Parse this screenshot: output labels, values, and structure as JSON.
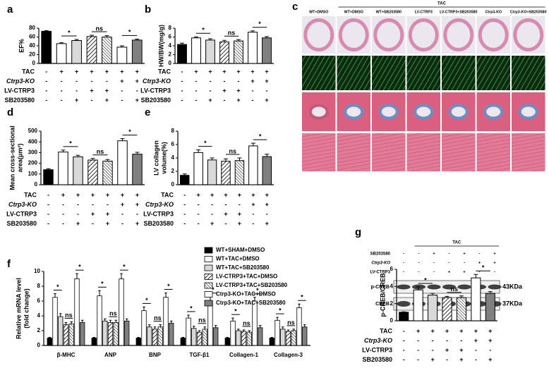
{
  "histology": {
    "panel": "c",
    "header": "TAC",
    "columns": [
      "WT+DMSO",
      "WT+DMSO",
      "WT+SB203580",
      "LV-CTRP3",
      "LV-CTRP3+SB203580",
      "Ctrp3-KO",
      "Ctrp3-KO+SB203580"
    ]
  },
  "blot": {
    "header": "TAC",
    "conditions": [
      {
        "label": "SB203580",
        "signs": [
          "-",
          "-",
          "+",
          "-",
          "+",
          "-",
          "+"
        ]
      },
      {
        "label": "Ctrp3-KO",
        "signs": [
          "-",
          "-",
          "-",
          "-",
          "-",
          "+",
          "+"
        ]
      },
      {
        "label": "LV-CTRP3",
        "signs": [
          "-",
          "-",
          "-",
          "+",
          "+",
          "-",
          "-"
        ]
      }
    ],
    "bands": [
      {
        "label": "p-CREB",
        "size": "43KDa"
      },
      {
        "label": "CREB",
        "size": "37KDa"
      }
    ]
  },
  "chart_data": [
    {
      "type": "bar",
      "panel": "a",
      "ylabel": "EF%",
      "values": [
        73,
        45,
        52,
        61,
        60,
        37,
        53
      ],
      "errors": [
        1.5,
        2,
        2.5,
        3,
        3,
        3,
        2.5
      ],
      "fills": [
        "#000000",
        "#ffffff",
        "#d9d9d9",
        "diagonal",
        "diagonal-dense",
        "#ffffff",
        "#808080"
      ],
      "ylim": [
        0,
        80
      ],
      "yticks": [
        0,
        20,
        40,
        60,
        80
      ],
      "significance": [
        {
          "label": "*",
          "bars": [
            1,
            2
          ]
        },
        {
          "label": "ns",
          "bars": [
            3,
            4
          ]
        },
        {
          "label": "*",
          "bars": [
            5,
            6
          ]
        }
      ],
      "conditions": [
        {
          "label": "TAC",
          "signs": [
            "-",
            "+",
            "+",
            "+",
            "+",
            "+",
            "+"
          ]
        },
        {
          "label": "Ctrp3-KO",
          "signs": [
            "-",
            "-",
            "-",
            "-",
            "-",
            "+",
            "+"
          ]
        },
        {
          "label": "LV-CTRP3",
          "signs": [
            "-",
            "-",
            "-",
            "+",
            "+",
            "-",
            "-"
          ]
        },
        {
          "label": "SB203580",
          "signs": [
            "-",
            "-",
            "+",
            "-",
            "+",
            "-",
            "+"
          ]
        }
      ]
    },
    {
      "type": "bar",
      "panel": "b",
      "ylabel": "HW/BW(mg/g)",
      "values": [
        4.3,
        5.8,
        5.3,
        4.9,
        5.1,
        7.1,
        5.8
      ],
      "errors": [
        0.3,
        0.25,
        0.3,
        0.35,
        0.3,
        0.3,
        0.3
      ],
      "fills": [
        "#000000",
        "#ffffff",
        "#d9d9d9",
        "diagonal",
        "diagonal-dense",
        "#ffffff",
        "#808080"
      ],
      "ylim": [
        0,
        8
      ],
      "yticks": [
        0,
        2,
        4,
        6,
        8
      ],
      "significance": [
        {
          "label": "*",
          "bars": [
            1,
            2
          ]
        },
        {
          "label": "ns",
          "bars": [
            3,
            4
          ]
        },
        {
          "label": "*",
          "bars": [
            5,
            6
          ]
        }
      ],
      "conditions": [
        {
          "label": "TAC",
          "signs": [
            "-",
            "+",
            "+",
            "+",
            "+",
            "+",
            "+"
          ]
        },
        {
          "label": "Ctrp3-KO",
          "signs": [
            "-",
            "-",
            "-",
            "-",
            "-",
            "+",
            "+"
          ]
        },
        {
          "label": "LV-CTRP3",
          "signs": [
            "-",
            "-",
            "-",
            "+",
            "+",
            "-",
            "-"
          ]
        },
        {
          "label": "SB203580",
          "signs": [
            "-",
            "-",
            "+",
            "-",
            "+",
            "-",
            "+"
          ]
        }
      ]
    },
    {
      "type": "bar",
      "panel": "d",
      "ylabel": [
        "Mean cross-sectional",
        "area(μm²)"
      ],
      "values": [
        140,
        305,
        260,
        230,
        220,
        410,
        285
      ],
      "errors": [
        10,
        18,
        15,
        15,
        15,
        20,
        18
      ],
      "fills": [
        "#000000",
        "#ffffff",
        "#d9d9d9",
        "diagonal",
        "diagonal-dense",
        "#ffffff",
        "#808080"
      ],
      "ylim": [
        0,
        500
      ],
      "yticks": [
        0,
        100,
        200,
        300,
        400,
        500
      ],
      "significance": [
        {
          "label": "*",
          "bars": [
            1,
            2
          ]
        },
        {
          "label": "ns",
          "bars": [
            3,
            4
          ]
        },
        {
          "label": "*",
          "bars": [
            5,
            6
          ]
        }
      ],
      "conditions": [
        {
          "label": "TAC",
          "signs": [
            "-",
            "+",
            "+",
            "+",
            "+",
            "+",
            "+"
          ]
        },
        {
          "label": "Ctrp3-KO",
          "signs": [
            "-",
            "-",
            "-",
            "-",
            "-",
            "+",
            "+"
          ]
        },
        {
          "label": "LV-CTRP3",
          "signs": [
            "-",
            "-",
            "-",
            "+",
            "+",
            "-",
            "-"
          ]
        },
        {
          "label": "SB203580",
          "signs": [
            "-",
            "-",
            "+",
            "-",
            "+",
            "-",
            "+"
          ]
        }
      ]
    },
    {
      "type": "bar",
      "panel": "e",
      "ylabel": [
        "LV collagen",
        "volume(%)"
      ],
      "values": [
        1.4,
        4.8,
        3.7,
        3.5,
        3.6,
        5.8,
        4.2
      ],
      "errors": [
        0.2,
        0.4,
        0.3,
        0.35,
        0.4,
        0.4,
        0.35
      ],
      "fills": [
        "#000000",
        "#ffffff",
        "#d9d9d9",
        "diagonal",
        "diagonal-dense",
        "#ffffff",
        "#808080"
      ],
      "ylim": [
        0,
        8
      ],
      "yticks": [
        0,
        2,
        4,
        6,
        8
      ],
      "significance": [
        {
          "label": "*",
          "bars": [
            1,
            2
          ]
        },
        {
          "label": "ns",
          "bars": [
            3,
            4
          ]
        },
        {
          "label": "*",
          "bars": [
            5,
            6
          ]
        }
      ],
      "conditions": [
        {
          "label": "TAC",
          "signs": [
            "-",
            "+",
            "+",
            "+",
            "+",
            "+",
            "+"
          ]
        },
        {
          "label": "Ctrp3-KO",
          "signs": [
            "-",
            "-",
            "-",
            "-",
            "-",
            "+",
            "+"
          ]
        },
        {
          "label": "LV-CTRP3",
          "signs": [
            "-",
            "-",
            "-",
            "+",
            "+",
            "-",
            "-"
          ]
        },
        {
          "label": "SB203580",
          "signs": [
            "-",
            "-",
            "+",
            "-",
            "+",
            "-",
            "+"
          ]
        }
      ]
    },
    {
      "type": "grouped_bar",
      "panel": "f",
      "ylabel": [
        "Relative mRNA level",
        "(fold change)"
      ],
      "categories": [
        "β-MHC",
        "ANP",
        "BNP",
        "TGF-β1",
        "Collagen-1",
        "Collagen-3"
      ],
      "legend": "upper right",
      "ylim": [
        0,
        10
      ],
      "yticks": [
        0,
        2,
        4,
        6,
        8,
        10
      ],
      "significance": [
        {
          "label": "*",
          "bars": [
            1,
            2
          ]
        },
        {
          "label": "ns",
          "bars": [
            3,
            4
          ]
        },
        {
          "label": "*",
          "bars": [
            5,
            6
          ]
        }
      ],
      "series": [
        {
          "name": "WT+SHAM+DMSO",
          "fill": "#000000",
          "values": [
            1,
            1,
            1,
            1,
            1,
            1
          ],
          "errors": [
            0.1,
            0.1,
            0.1,
            0.1,
            0.1,
            0.1
          ]
        },
        {
          "name": "WT+TAC+DMSO",
          "fill": "#ffffff",
          "values": [
            6.5,
            6.7,
            4.7,
            3.7,
            3.3,
            3.4
          ],
          "errors": [
            0.5,
            0.7,
            0.5,
            0.4,
            0.4,
            0.4
          ]
        },
        {
          "name": "WT+TAC+SB203580",
          "fill": "#d9d9d9",
          "values": [
            3.9,
            3.3,
            2.5,
            2.3,
            2.0,
            2.2
          ],
          "errors": [
            0.4,
            0.3,
            0.3,
            0.3,
            0.2,
            0.3
          ]
        },
        {
          "name": "LV-CTRP3+TAC+DMSO",
          "fill": "diagonal",
          "values": [
            2.8,
            3.1,
            2.2,
            1.8,
            1.9,
            1.9
          ],
          "errors": [
            0.3,
            0.3,
            0.3,
            0.2,
            0.2,
            0.2
          ]
        },
        {
          "name": "LV-CTRP3+TAC+SB203580",
          "fill": "diagonal-dense",
          "values": [
            2.9,
            3.1,
            2.5,
            2.2,
            1.8,
            2.0
          ],
          "errors": [
            0.3,
            0.3,
            0.3,
            0.3,
            0.2,
            0.2
          ]
        },
        {
          "name": "Ctrp3-KO+TAC+DMSO",
          "fill": "#ffffff",
          "values": [
            9.0,
            9.0,
            6.5,
            6.0,
            6.0,
            5.1
          ],
          "errors": [
            0.7,
            0.7,
            0.6,
            0.6,
            0.5,
            0.5
          ]
        },
        {
          "name": "Ctrp3-KO+TAC+SB203580",
          "fill": "#808080",
          "values": [
            3.1,
            3.3,
            3.0,
            2.4,
            2.4,
            2.5
          ],
          "errors": [
            0.3,
            0.3,
            0.3,
            0.3,
            0.3,
            0.3
          ]
        }
      ]
    },
    {
      "type": "bar",
      "panel": "g",
      "ylabel": "p-CREB/CREB",
      "values": [
        1.0,
        3.6,
        3.0,
        2.7,
        2.7,
        5.0,
        3.2
      ],
      "errors": [
        0.05,
        0.35,
        0.2,
        0.15,
        0.2,
        0.4,
        0.2
      ],
      "fills": [
        "#000000",
        "#ffffff",
        "#d9d9d9",
        "diagonal",
        "diagonal-dense",
        "#ffffff",
        "#808080"
      ],
      "ylim": [
        0,
        6
      ],
      "yticks": [
        0,
        2,
        4,
        6
      ],
      "significance": [
        {
          "label": "*",
          "bars": [
            1,
            2
          ]
        },
        {
          "label": "ns",
          "bars": [
            3,
            4
          ]
        },
        {
          "label": "*",
          "bars": [
            5,
            6
          ]
        }
      ],
      "conditions": [
        {
          "label": "TAC",
          "signs": [
            "-",
            "+",
            "+",
            "+",
            "+",
            "+",
            "+"
          ]
        },
        {
          "label": "Ctrp3-KO",
          "signs": [
            "-",
            "-",
            "-",
            "-",
            "-",
            "+",
            "+"
          ]
        },
        {
          "label": "LV-CTRP3",
          "signs": [
            "-",
            "-",
            "-",
            "+",
            "+",
            "-",
            "-"
          ]
        },
        {
          "label": "SB203580",
          "signs": [
            "-",
            "-",
            "+",
            "-",
            "+",
            "-",
            "+"
          ]
        }
      ]
    }
  ]
}
